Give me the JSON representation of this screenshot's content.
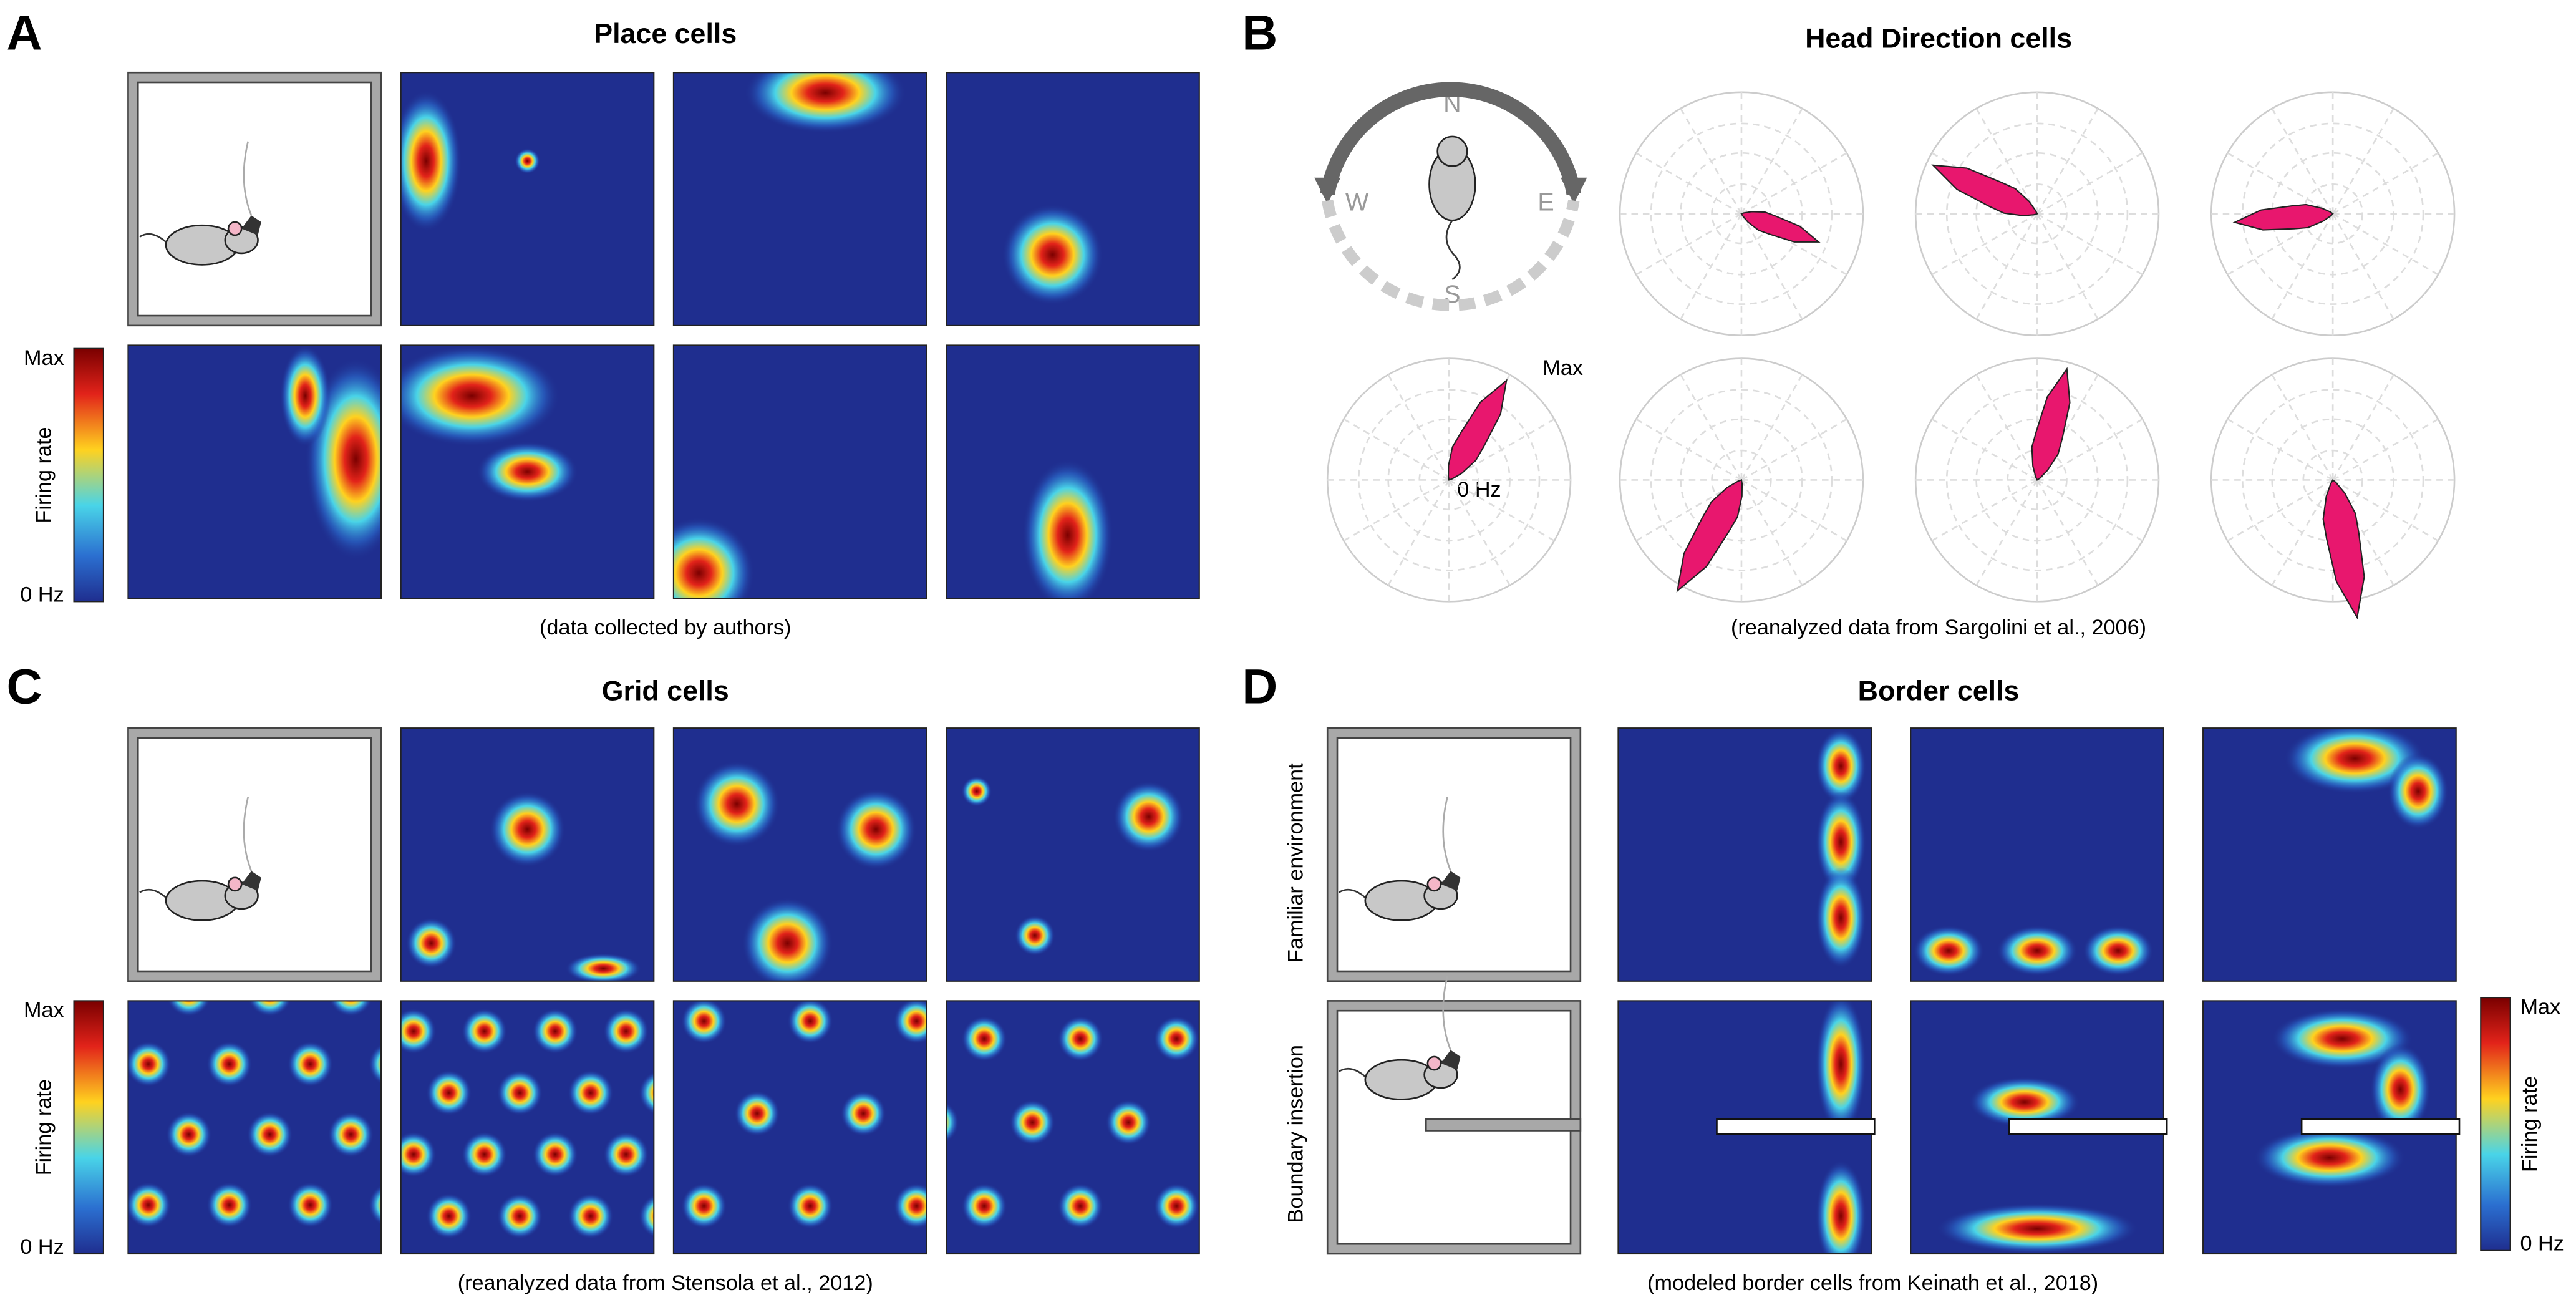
{
  "panels": {
    "A": {
      "letter": "A",
      "title": "Place cells",
      "colorbar": {
        "max": "Max",
        "label": "Firing rate",
        "min": "0 Hz"
      },
      "caption": "(data collected by authors)"
    },
    "B": {
      "letter": "B",
      "title": "Head Direction cells",
      "compass": {
        "n": "N",
        "w": "W",
        "e": "E",
        "s": "S"
      },
      "polar_labels": {
        "max": "Max",
        "min": "0 Hz"
      },
      "caption": "(reanalyzed data from Sargolini et al., 2006)"
    },
    "C": {
      "letter": "C",
      "title": "Grid cells",
      "colorbar": {
        "max": "Max",
        "label": "Firing rate",
        "min": "0 Hz"
      },
      "caption": "(reanalyzed data from Stensola et al., 2012)"
    },
    "D": {
      "letter": "D",
      "title": "Border cells",
      "row_labels": [
        "Familiar environment",
        "Boundary insertion"
      ],
      "colorbar": {
        "max": "Max",
        "label": "Firing rate",
        "min": "0 Hz"
      },
      "caption": "(modeled border cells from Keinath et al., 2018)"
    }
  }
}
